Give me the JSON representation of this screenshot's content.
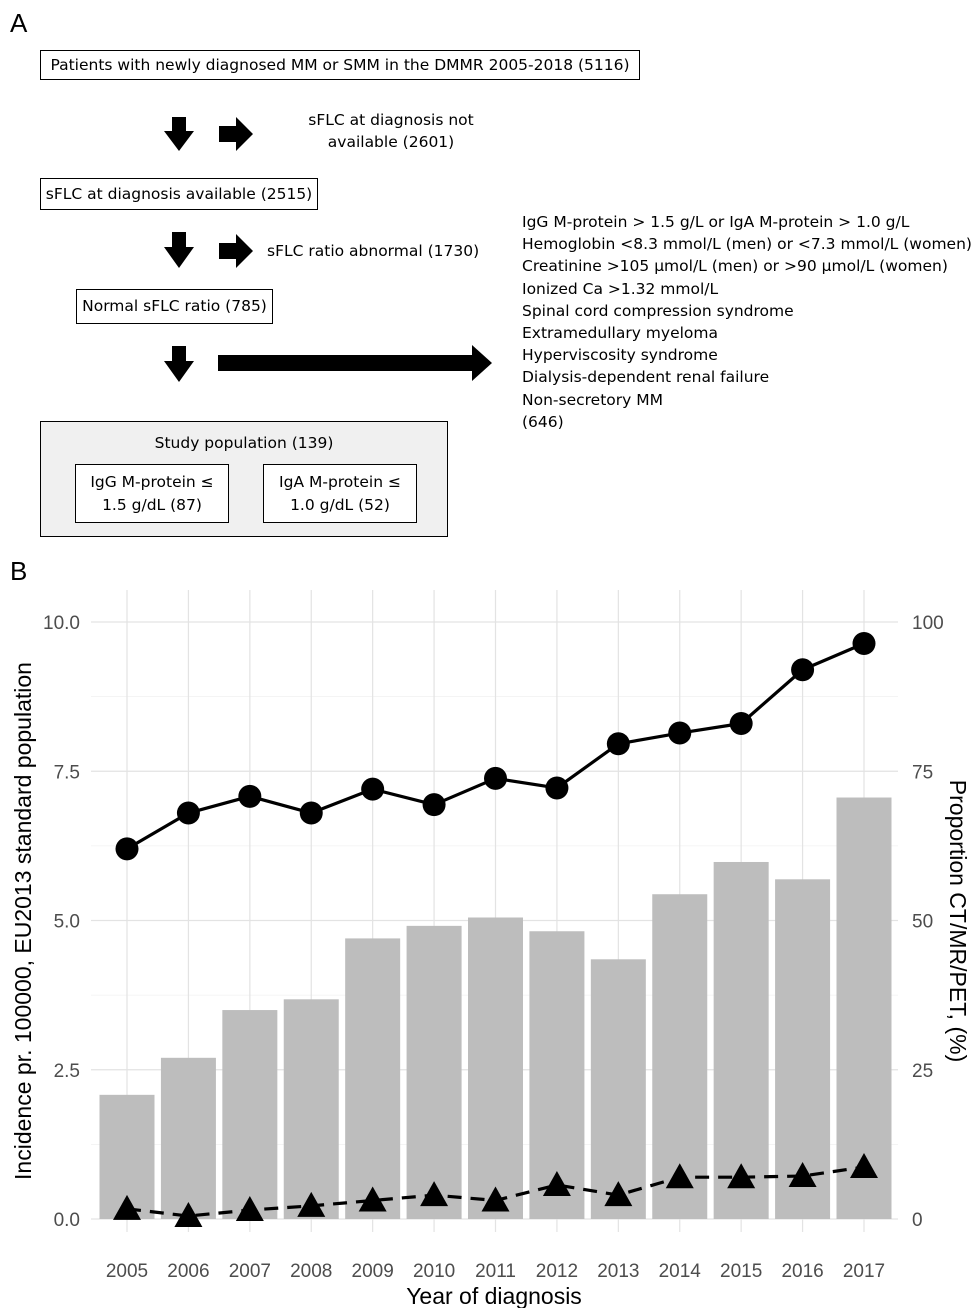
{
  "panel_a": {
    "letter": "A",
    "box_total": "Patients with newly diagnosed MM or SMM in the DMMR 2005-2018 (5116)",
    "excluded_1_line1": "sFLC at diagnosis not",
    "excluded_1_line2": "available (2601)",
    "box_available": "sFLC at diagnosis available (2515)",
    "excluded_2": "sFLC ratio abnormal (1730)",
    "box_normal": "Normal sFLC ratio (785)",
    "excluded_3": [
      "IgG M-protein > 1.5 g/L or IgA M-protein > 1.0 g/L",
      "Hemoglobin <8.3 mmol/L (men) or <7.3 mmol/L (women)",
      "Creatinine >105 µmol/L (men) or >90 µmol/L (women)",
      "Ionized Ca >1.32 mmol/L",
      "Spinal cord compression syndrome",
      "Extramedullary myeloma",
      "Hyperviscosity syndrome",
      "Dialysis-dependent renal failure",
      "Non-secretory MM",
      "(646)"
    ],
    "study_title": "Study population (139)",
    "igg_line1": "IgG M-protein ≤",
    "igg_line2": "1.5 g/dL (87)",
    "iga_line1": "IgA M-protein ≤",
    "iga_line2": "1.0 g/dL (52)"
  },
  "panel_b": {
    "letter": "B"
  },
  "chart_data": {
    "type": "bar",
    "xlabel": "Year of diagnosis",
    "ylabel": "Incidence pr. 100000, EU2013 standard population",
    "ylabel_right": "Proportion CT/MR/PET, (%)",
    "ylim": [
      0,
      10
    ],
    "ylim_right": [
      0,
      100
    ],
    "yticks": [
      "0.0",
      "2.5",
      "5.0",
      "7.5",
      "10.0"
    ],
    "yticks_right": [
      "0",
      "25",
      "50",
      "75",
      "100"
    ],
    "categories": [
      "2005",
      "2006",
      "2007",
      "2008",
      "2009",
      "2010",
      "2011",
      "2012",
      "2013",
      "2014",
      "2015",
      "2016",
      "2017"
    ],
    "series": [
      {
        "axis": "left",
        "mark": "bar",
        "color": "#bdbdbd",
        "values": [
          2.08,
          2.7,
          3.5,
          3.68,
          4.7,
          4.91,
          5.05,
          4.82,
          4.35,
          5.44,
          5.98,
          5.69,
          7.06
        ]
      },
      {
        "axis": "right",
        "mark": "line-circle",
        "line": "solid",
        "color": "#000000",
        "values": [
          62,
          68,
          70.8,
          68,
          72,
          69.4,
          73.8,
          72.2,
          79.6,
          81.4,
          83,
          92,
          96.4
        ]
      },
      {
        "axis": "left",
        "mark": "line-triangle",
        "line": "dashed",
        "color": "#000000",
        "values": [
          0.17,
          0.05,
          0.15,
          0.22,
          0.31,
          0.4,
          0.31,
          0.57,
          0.4,
          0.7,
          0.7,
          0.72,
          0.87
        ]
      }
    ],
    "grid": true,
    "legend": "none"
  }
}
